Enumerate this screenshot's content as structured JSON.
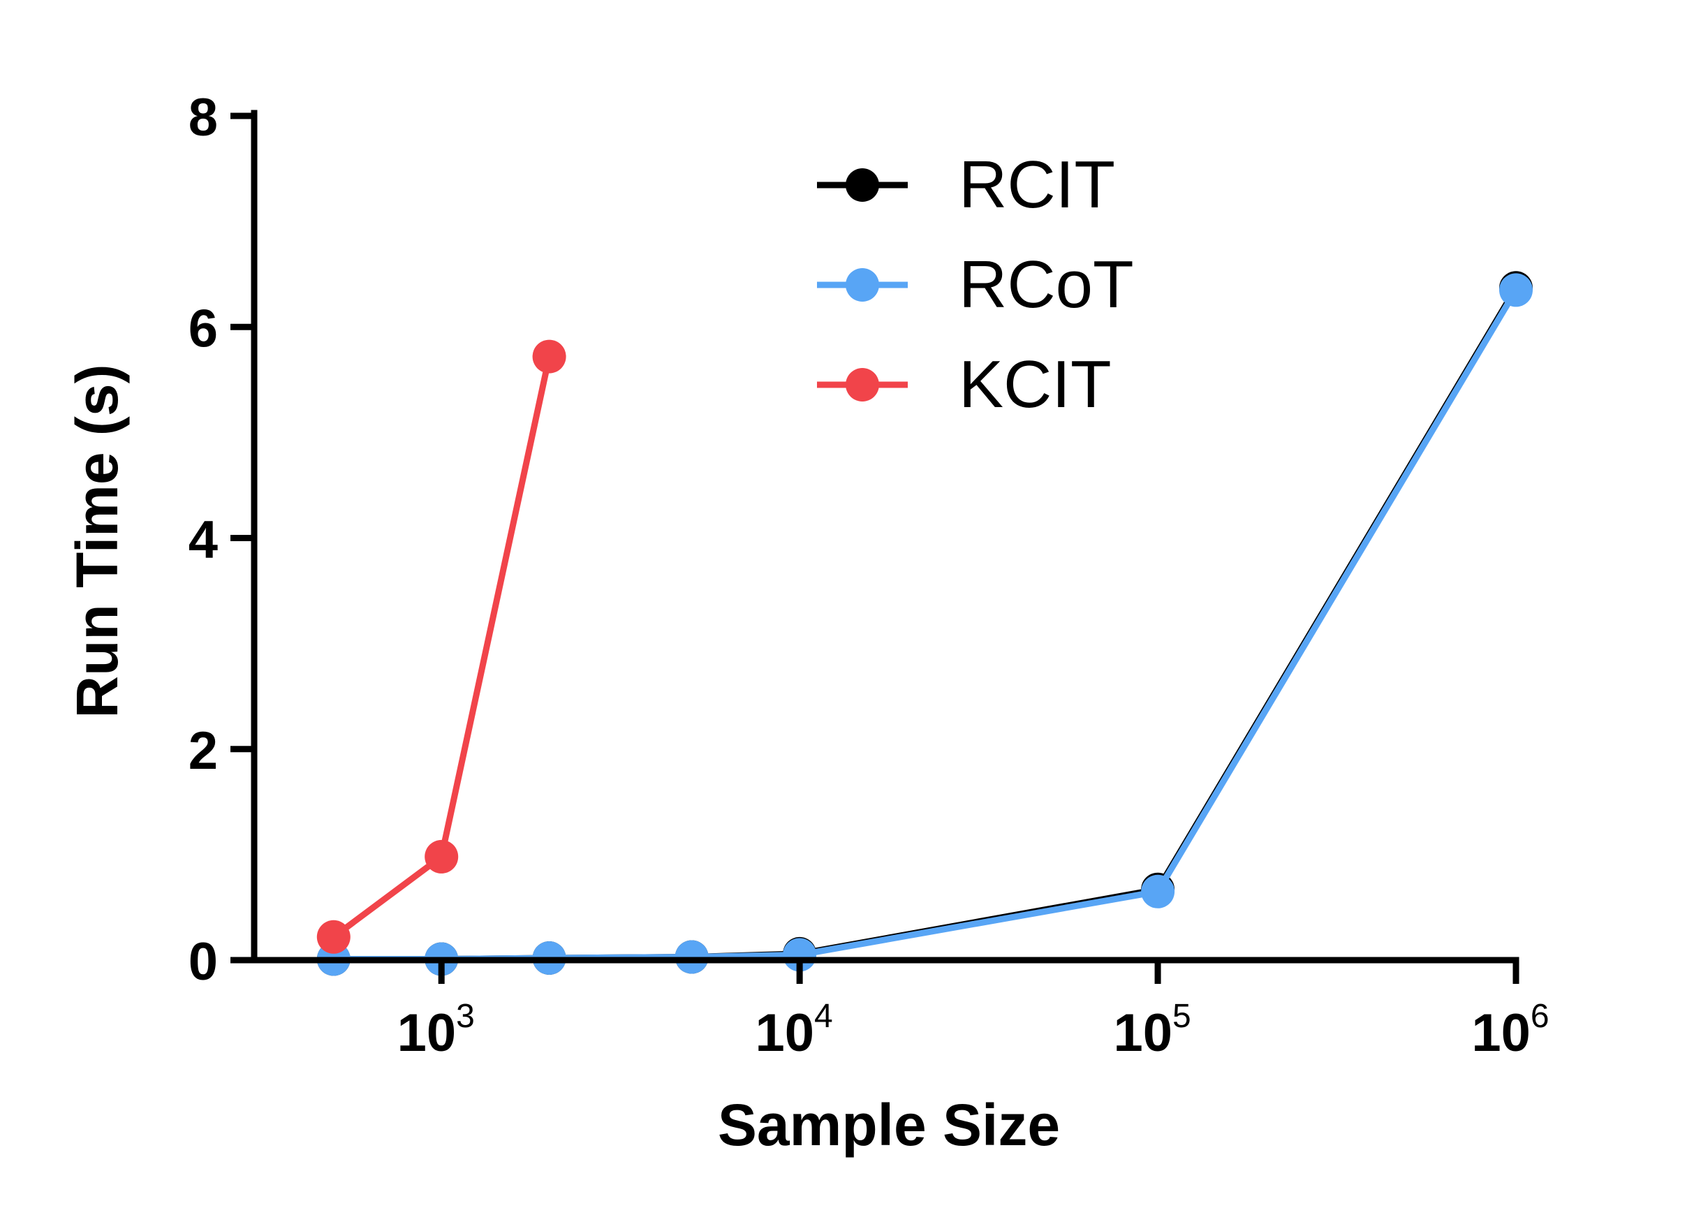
{
  "chart_data": {
    "type": "line",
    "title": "",
    "xlabel": "Sample Size",
    "ylabel": "Run Time (s)",
    "xscale": "log",
    "xlim": [
      300,
      1000000
    ],
    "ylim": [
      0,
      8
    ],
    "grid": false,
    "legend_position": "top-center",
    "yticks": [
      0,
      2,
      4,
      6,
      8
    ],
    "xticks": [
      {
        "value": 1000,
        "base": "10",
        "exp": "3"
      },
      {
        "value": 10000,
        "base": "10",
        "exp": "4"
      },
      {
        "value": 100000,
        "base": "10",
        "exp": "5"
      },
      {
        "value": 1000000,
        "base": "10",
        "exp": "6"
      }
    ],
    "series": [
      {
        "name": "RCIT",
        "color": "#000000",
        "x": [
          500,
          1000,
          2000,
          5000,
          10000,
          100000,
          1000000
        ],
        "y": [
          0.01,
          0.01,
          0.02,
          0.03,
          0.06,
          0.67,
          6.37
        ]
      },
      {
        "name": "RCoT",
        "color": "#58a5f5",
        "x": [
          500,
          1000,
          2000,
          5000,
          10000,
          100000,
          1000000
        ],
        "y": [
          0.01,
          0.01,
          0.02,
          0.03,
          0.05,
          0.65,
          6.35
        ]
      },
      {
        "name": "KCIT",
        "color": "#f1444a",
        "x": [
          500,
          1000,
          2000
        ],
        "y": [
          0.22,
          0.98,
          5.72
        ]
      }
    ]
  }
}
